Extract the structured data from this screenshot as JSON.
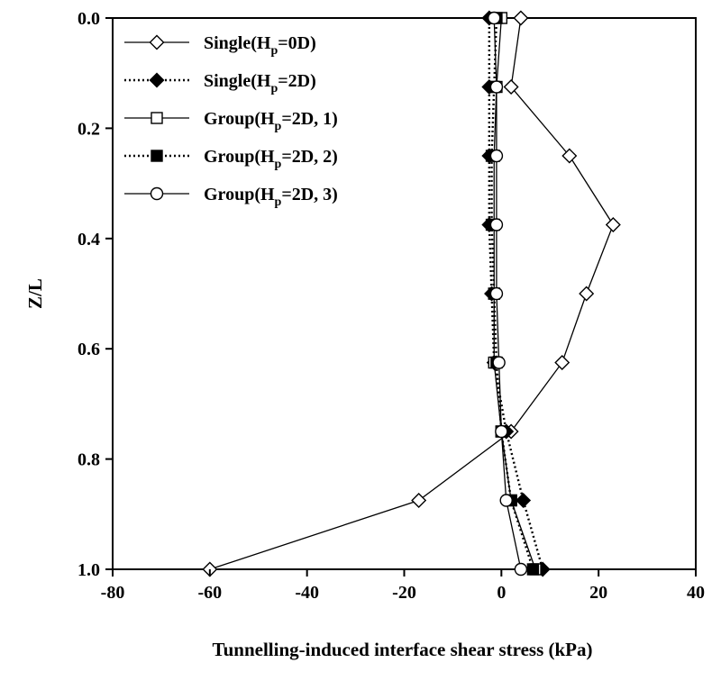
{
  "chart_data": {
    "type": "line",
    "xlabel": "Tunnelling-induced interface shear stress (kPa)",
    "ylabel": "Z/L",
    "xlim": [
      -80,
      40
    ],
    "ylim": [
      0,
      1
    ],
    "y_inverted": true,
    "x_ticks": [
      "-80",
      "-60",
      "-40",
      "-20",
      "0",
      "20",
      "40"
    ],
    "y_ticks": [
      "0.0",
      "0.2",
      "0.4",
      "0.6",
      "0.8",
      "1.0"
    ],
    "grid": false,
    "legend_position": "top-center",
    "series": [
      {
        "name_main": "Single(H",
        "name_sub": "p",
        "name_rest": "=0D)",
        "line": "solid",
        "marker": "diamond-open",
        "points": [
          [
            4,
            0.0
          ],
          [
            2,
            0.125
          ],
          [
            14,
            0.25
          ],
          [
            23,
            0.375
          ],
          [
            17.5,
            0.5
          ],
          [
            12.5,
            0.625
          ],
          [
            2,
            0.75
          ],
          [
            -17,
            0.875
          ],
          [
            -60,
            1.0
          ]
        ]
      },
      {
        "name_main": "Single(H",
        "name_sub": "p",
        "name_rest": "=2D)",
        "line": "dotted",
        "marker": "diamond-filled",
        "points": [
          [
            -2.5,
            0.0
          ],
          [
            -2.5,
            0.125
          ],
          [
            -2.5,
            0.25
          ],
          [
            -2.5,
            0.375
          ],
          [
            -2,
            0.5
          ],
          [
            -1.5,
            0.625
          ],
          [
            1,
            0.75
          ],
          [
            4.5,
            0.875
          ],
          [
            8.5,
            1.0
          ]
        ]
      },
      {
        "name_main": "Group(H",
        "name_sub": "p",
        "name_rest": "=2D, 1)",
        "line": "solid",
        "marker": "square-open",
        "points": [
          [
            0,
            0.0
          ],
          [
            -1,
            0.125
          ],
          [
            -1.5,
            0.25
          ],
          [
            -1.5,
            0.375
          ],
          [
            -1.5,
            0.5
          ],
          [
            -1.5,
            0.625
          ],
          [
            0,
            0.75
          ],
          [
            2,
            0.875
          ],
          [
            7,
            1.0
          ]
        ]
      },
      {
        "name_main": "Group(H",
        "name_sub": "p",
        "name_rest": "=2D, 2)",
        "line": "dotted",
        "marker": "square-filled",
        "points": [
          [
            -1,
            0.0
          ],
          [
            -1.5,
            0.125
          ],
          [
            -2,
            0.25
          ],
          [
            -2,
            0.375
          ],
          [
            -1.5,
            0.5
          ],
          [
            -1,
            0.625
          ],
          [
            0,
            0.75
          ],
          [
            2,
            0.875
          ],
          [
            6.5,
            1.0
          ]
        ]
      },
      {
        "name_main": "Group(H",
        "name_sub": "p",
        "name_rest": "=2D, 3)",
        "line": "solid",
        "marker": "circle-open",
        "points": [
          [
            -1.5,
            0.0
          ],
          [
            -1,
            0.125
          ],
          [
            -1,
            0.25
          ],
          [
            -1,
            0.375
          ],
          [
            -1,
            0.5
          ],
          [
            -0.5,
            0.625
          ],
          [
            0,
            0.75
          ],
          [
            1,
            0.875
          ],
          [
            4,
            1.0
          ]
        ]
      }
    ]
  }
}
